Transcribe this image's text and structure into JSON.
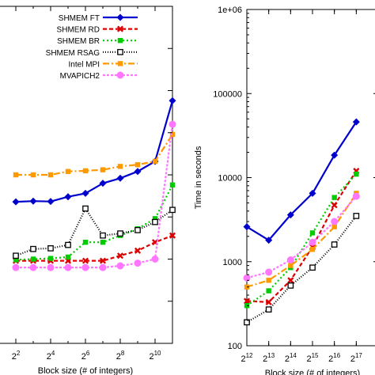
{
  "chart_data": [
    {
      "type": "line",
      "xscale": "log2",
      "xlim": [
        2,
        2048
      ],
      "ylim": [
        0.0,
        1.0
      ],
      "x_ticks": [
        {
          "x": 4,
          "base": "2",
          "exp": "2"
        },
        {
          "x": 16,
          "base": "2",
          "exp": "4"
        },
        {
          "x": 64,
          "base": "2",
          "exp": "6"
        },
        {
          "x": 256,
          "base": "2",
          "exp": "8"
        },
        {
          "x": 1024,
          "base": "2",
          "exp": "10"
        }
      ],
      "xlabel": "Block size (# of integers)",
      "legend": "top-right",
      "grid": false,
      "x": [
        4,
        8,
        16,
        32,
        64,
        128,
        256,
        512,
        1024,
        2048
      ],
      "series": [
        {
          "name": "SHMEM FT",
          "color": "#0000cc",
          "marker": "diamond",
          "dash": "",
          "values": [
            0.42,
            0.422,
            0.421,
            0.435,
            0.445,
            0.475,
            0.49,
            0.51,
            0.54,
            0.72
          ]
        },
        {
          "name": "SHMEM RD",
          "color": "#dd0000",
          "marker": "x",
          "dash": "5,3",
          "values": [
            0.245,
            0.245,
            0.245,
            0.245,
            0.245,
            0.245,
            0.26,
            0.275,
            0.3,
            0.32
          ]
        },
        {
          "name": "SHMEM BR",
          "color": "#00cc00",
          "marker": "square",
          "dash": "2,3",
          "values": [
            0.248,
            0.25,
            0.252,
            0.256,
            0.3,
            0.3,
            0.32,
            0.34,
            0.37,
            0.47
          ]
        },
        {
          "name": "SHMEM RSAG",
          "color": "#000000",
          "marker": "open-square",
          "dash": "1,2",
          "values": [
            0.26,
            0.28,
            0.282,
            0.292,
            0.4,
            0.32,
            0.326,
            0.336,
            0.36,
            0.396
          ]
        },
        {
          "name": "Intel MPI",
          "color": "#ff9900",
          "marker": "filled-square",
          "dash": "8,3,2,3",
          "values": [
            0.5,
            0.5,
            0.5,
            0.51,
            0.512,
            0.515,
            0.525,
            0.53,
            0.54,
            0.62
          ]
        },
        {
          "name": "MVAPICH2",
          "color": "#ff77ff",
          "marker": "circle",
          "dash": "3,2",
          "values": [
            0.225,
            0.225,
            0.225,
            0.225,
            0.225,
            0.225,
            0.23,
            0.238,
            0.25,
            0.65
          ]
        }
      ]
    },
    {
      "type": "line",
      "xscale": "log2",
      "yscale": "log10",
      "xlim": [
        4096,
        262144
      ],
      "ylim": [
        100,
        1000000
      ],
      "y_ticks": [
        "100",
        "1000",
        "10000",
        "100000",
        "1e+06"
      ],
      "y_tick_values": [
        100,
        1000,
        10000,
        100000,
        1000000
      ],
      "x_ticks": [
        {
          "x": 4096,
          "base": "2",
          "exp": "12"
        },
        {
          "x": 8192,
          "base": "2",
          "exp": "13"
        },
        {
          "x": 16384,
          "base": "2",
          "exp": "14"
        },
        {
          "x": 32768,
          "base": "2",
          "exp": "15"
        },
        {
          "x": 65536,
          "base": "2",
          "exp": "16"
        },
        {
          "x": 131072,
          "base": "2",
          "exp": "17"
        }
      ],
      "xlabel": "Block size (# of integers)",
      "ylabel": "Time in seconds",
      "grid": false,
      "x": [
        4096,
        8192,
        16384,
        32768,
        65536,
        131072
      ],
      "series": [
        {
          "name": "SHMEM FT",
          "color": "#0000cc",
          "marker": "diamond",
          "dash": "",
          "values": [
            2600,
            1800,
            3600,
            6500,
            18500,
            46000
          ]
        },
        {
          "name": "SHMEM RD",
          "color": "#dd0000",
          "marker": "x",
          "dash": "5,3",
          "values": [
            340,
            330,
            600,
            1500,
            4700,
            12000
          ]
        },
        {
          "name": "SHMEM BR",
          "color": "#00cc00",
          "marker": "square",
          "dash": "2,3",
          "values": [
            300,
            450,
            850,
            2200,
            5800,
            11000
          ]
        },
        {
          "name": "SHMEM RSAG",
          "color": "#000000",
          "marker": "open-square",
          "dash": "1,2",
          "values": [
            190,
            270,
            520,
            850,
            1600,
            3500
          ]
        },
        {
          "name": "Intel MPI",
          "color": "#ff9900",
          "marker": "filled-square",
          "dash": "8,3,2,3",
          "values": [
            500,
            600,
            900,
            1400,
            2600,
            6500
          ]
        },
        {
          "name": "MVAPICH2",
          "color": "#ff77ff",
          "marker": "circle",
          "dash": "3,2",
          "values": [
            640,
            750,
            1050,
            1700,
            3000,
            6000
          ]
        }
      ]
    }
  ]
}
